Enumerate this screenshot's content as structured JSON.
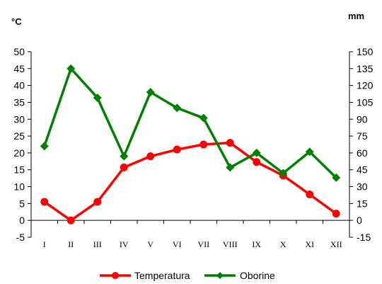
{
  "chart_data": {
    "type": "line",
    "categories": [
      "I",
      "II",
      "III",
      "IV",
      "V",
      "VI",
      "VII",
      "VIII",
      "IX",
      "X",
      "XI",
      "XII"
    ],
    "left_axis": {
      "unit": "°C",
      "min": -5,
      "max": 50,
      "step": 5
    },
    "right_axis": {
      "unit": "mm",
      "min": -15,
      "max": 150,
      "step": 15
    },
    "series": [
      {
        "name": "Temperatura",
        "axis": "left",
        "color": "#ff0000",
        "marker": "circle",
        "values": [
          5.5,
          0,
          5.5,
          15.7,
          19,
          21,
          22.5,
          23,
          17.3,
          13.3,
          7.7,
          2
        ]
      },
      {
        "name": "Oborine",
        "axis": "right",
        "color": "#008000",
        "marker": "diamond",
        "values": [
          66,
          135,
          109,
          57,
          114,
          100,
          91,
          47,
          60,
          42,
          61,
          38
        ]
      }
    ],
    "legend": "bottom-center",
    "grid": false
  }
}
